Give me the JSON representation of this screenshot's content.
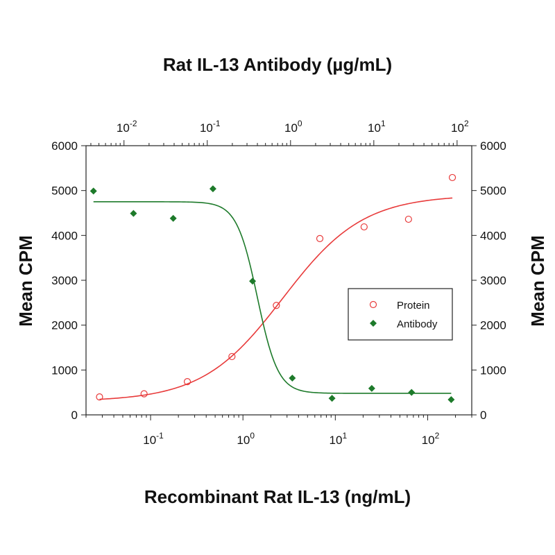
{
  "chart_data": {
    "type": "scatter",
    "top_title": "Rat IL-13 Antibody (µg/mL)",
    "xlabel": "Recombinant Rat IL-13 (ng/mL)",
    "ylabel_left": "Mean CPM",
    "ylabel_right": "Mean CPM",
    "xscale": "log",
    "x2scale": "log",
    "xlim": [
      0.02,
      300
    ],
    "x2lim": [
      0.0035,
      150
    ],
    "ylim": [
      0,
      6000
    ],
    "yticks": [
      0,
      1000,
      2000,
      3000,
      4000,
      5000,
      6000
    ],
    "xticks": [
      {
        "value": 0.1,
        "base": "10",
        "exp": "-1"
      },
      {
        "value": 1,
        "base": "10",
        "exp": "0"
      },
      {
        "value": 10,
        "base": "10",
        "exp": "1"
      },
      {
        "value": 100,
        "base": "10",
        "exp": "2"
      }
    ],
    "x2ticks": [
      {
        "value": 0.01,
        "base": "10",
        "exp": "-2"
      },
      {
        "value": 0.1,
        "base": "10",
        "exp": "-1"
      },
      {
        "value": 1,
        "base": "10",
        "exp": "0"
      },
      {
        "value": 10,
        "base": "10",
        "exp": "1"
      },
      {
        "value": 100,
        "base": "10",
        "exp": "2"
      }
    ],
    "legend_position": "center-right",
    "grid": false,
    "series": [
      {
        "name": "Protein",
        "axis": "bottom",
        "color": "#e83a3a",
        "marker": "open-circle",
        "points": [
          {
            "x": 0.028,
            "y": 400
          },
          {
            "x": 0.085,
            "y": 470
          },
          {
            "x": 0.25,
            "y": 740
          },
          {
            "x": 0.76,
            "y": 1300
          },
          {
            "x": 2.3,
            "y": 2440
          },
          {
            "x": 6.8,
            "y": 3930
          },
          {
            "x": 20.5,
            "y": 4190
          },
          {
            "x": 62,
            "y": 4360
          },
          {
            "x": 185,
            "y": 5290
          }
        ],
        "curve": {
          "type": "logistic",
          "bottom": 300,
          "top": 4900,
          "ec50": 2.7,
          "hill": 1.0
        }
      },
      {
        "name": "Antibody",
        "axis": "top",
        "color": "#1d7a2a",
        "marker": "filled-diamond",
        "points": [
          {
            "x": 0.0043,
            "y": 4990
          },
          {
            "x": 0.013,
            "y": 4490
          },
          {
            "x": 0.039,
            "y": 4380
          },
          {
            "x": 0.117,
            "y": 5040
          },
          {
            "x": 0.35,
            "y": 2980
          },
          {
            "x": 1.05,
            "y": 820
          },
          {
            "x": 3.15,
            "y": 370
          },
          {
            "x": 9.45,
            "y": 590
          },
          {
            "x": 28.4,
            "y": 500
          },
          {
            "x": 85,
            "y": 340
          }
        ],
        "curve": {
          "type": "logistic",
          "bottom": 480,
          "top": 4750,
          "ec50": 0.4,
          "hill": 3.5
        }
      }
    ]
  }
}
